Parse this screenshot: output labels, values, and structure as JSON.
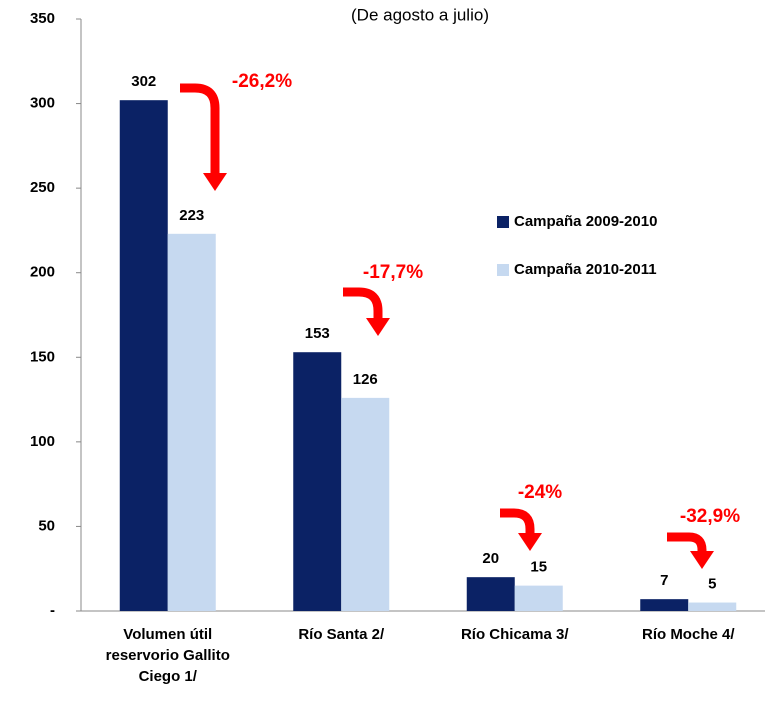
{
  "chart_data": {
    "type": "bar",
    "subtitle": "(De agosto a julio)",
    "categories": [
      "Volumen útil reservorio Gallito Ciego 1/",
      "Río Santa 2/",
      "Río Chicama 3/",
      "Río Moche 4/"
    ],
    "series": [
      {
        "name": "Campaña 2009-2010",
        "color": "#0b2265",
        "values": [
          302,
          153,
          20,
          7
        ]
      },
      {
        "name": "Campaña 2010-2011",
        "color": "#c6d9f0",
        "values": [
          223,
          126,
          15,
          5
        ]
      }
    ],
    "ylim": [
      0,
      350
    ],
    "yticks": [
      {
        "value": 0,
        "label": "-"
      },
      50,
      100,
      150,
      200,
      250,
      300,
      350
    ],
    "annotations": [
      "-26,2%",
      "-17,7%",
      "-24%",
      "-32,9%"
    ],
    "legend": "right",
    "annotation_color": "#ff0000"
  }
}
